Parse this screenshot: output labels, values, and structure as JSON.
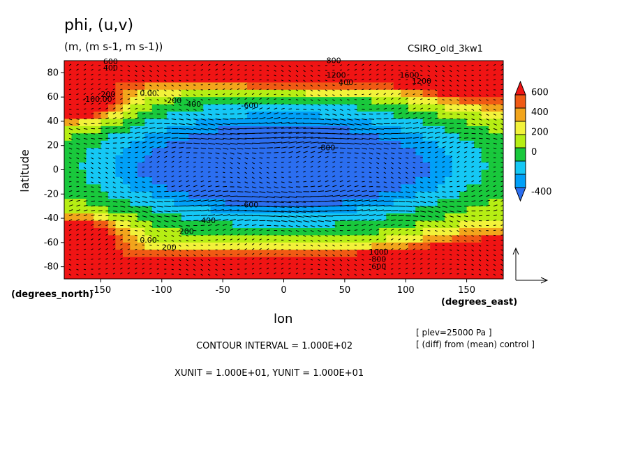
{
  "chart_data": {
    "type": "heatmap",
    "title": "phi, (u,v)",
    "subtitle": "(m, (m s-1, m s-1))",
    "dataset": "CSIRO_old_3kw1",
    "xlabel": "lon",
    "ylabel": "latitude",
    "x_units_label": "(degrees_east)",
    "y_units_label": "(degrees_north)",
    "xlim": [
      -180,
      180
    ],
    "ylim": [
      -90,
      90
    ],
    "x_ticks": [
      -150,
      -100,
      -50,
      0,
      50,
      100,
      150
    ],
    "y_ticks": [
      -80,
      -60,
      -40,
      -20,
      0,
      20,
      40,
      60,
      80
    ],
    "colorbar": {
      "levels": [
        -500,
        -400,
        -300,
        -200,
        -100,
        0,
        100,
        200,
        300,
        400,
        500,
        600,
        700
      ],
      "tick_labels": [
        "600",
        "400",
        "200",
        "0",
        "-400"
      ],
      "tick_values": [
        600,
        400,
        200,
        0,
        -400
      ],
      "colors": [
        "#2b6ef0",
        "#00a0f8",
        "#15c8f5",
        "#19c83c",
        "#b6ee14",
        "#f2f23a",
        "#f2a51c",
        "#f05a14",
        "#f01414"
      ]
    },
    "contour_labels": [
      {
        "text": "600",
        "lon": -148,
        "lat": 87
      },
      {
        "text": "400",
        "lon": -148,
        "lat": 82
      },
      {
        "text": "200",
        "lon": -150,
        "lat": 60
      },
      {
        "text": "-100.00",
        "lon": -165,
        "lat": 56
      },
      {
        "text": "0.00",
        "lon": -118,
        "lat": 61
      },
      {
        "text": "-200",
        "lon": -98,
        "lat": 55
      },
      {
        "text": "-400",
        "lon": -82,
        "lat": 52
      },
      {
        "text": "-600",
        "lon": -35,
        "lat": 51
      },
      {
        "text": "-800",
        "lon": 28,
        "lat": 16
      },
      {
        "text": "800",
        "lon": 35,
        "lat": 88
      },
      {
        "text": "1200",
        "lon": 35,
        "lat": 76
      },
      {
        "text": "400",
        "lon": 45,
        "lat": 70
      },
      {
        "text": "1600",
        "lon": 95,
        "lat": 76
      },
      {
        "text": "1200",
        "lon": 105,
        "lat": 71
      },
      {
        "text": "-600",
        "lon": -35,
        "lat": -31
      },
      {
        "text": "-400",
        "lon": -70,
        "lat": -44
      },
      {
        "text": "-200",
        "lon": -88,
        "lat": -53
      },
      {
        "text": "0.00",
        "lon": -118,
        "lat": -60
      },
      {
        "text": "200",
        "lon": -100,
        "lat": -66
      },
      {
        "text": "1000",
        "lon": 70,
        "lat": -70
      },
      {
        "text": "800",
        "lon": 72,
        "lat": -76
      },
      {
        "text": "600",
        "lon": 72,
        "lat": -82
      }
    ],
    "vector_field": "(u,v)",
    "contour_interval": "CONTOUR INTERVAL = 1.000E+02",
    "vector_scale": "XUNIT = 1.000E+01, YUNIT = 1.000E+01",
    "grid": false
  },
  "annotations": {
    "plev": "[ plev=25000 Pa ]",
    "diff": "[ (diff) from (mean) control ]"
  }
}
